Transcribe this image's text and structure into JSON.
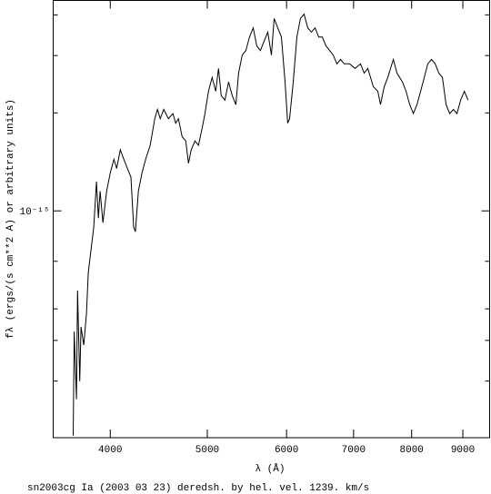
{
  "chart_data": {
    "type": "line",
    "xlabel": "λ (Å)",
    "ylabel": "fλ (ergs/(s cm**2 A) or arbitrary units)",
    "caption": "sn2003cg Ia (2003 03 23) deredsh. by hel. vel.  1239. km/s",
    "xscale": "log",
    "yscale": "log",
    "xlim": [
      3508,
      9572
    ],
    "ylim": [
      2.01e-16,
      4.43e-15
    ],
    "xticks": [
      4000,
      5000,
      6000,
      7000,
      8000,
      9000
    ],
    "yticks": [
      {
        "value": 1e-15,
        "label": "10⁻¹⁵"
      }
    ],
    "yminor": [
      3e-16,
      4e-16,
      5e-16,
      7e-16,
      2e-15,
      3e-15,
      4e-15
    ],
    "series": [
      {
        "color": "#000000",
        "x": [
          3673,
          3682,
          3701,
          3710,
          3729,
          3740,
          3763,
          3787,
          3803,
          3827,
          3851,
          3875,
          3892,
          3908,
          3933,
          3967,
          4000,
          4034,
          4059,
          4093,
          4127,
          4161,
          4195,
          4221,
          4238,
          4267,
          4303,
          4339,
          4385,
          4431,
          4459,
          4487,
          4524,
          4572,
          4620,
          4649,
          4679,
          4719,
          4759,
          4789,
          4819,
          4860,
          4900,
          4942,
          4973,
          5014,
          5056,
          5099,
          5131,
          5163,
          5207,
          5251,
          5295,
          5340,
          5373,
          5419,
          5464,
          5510,
          5557,
          5603,
          5650,
          5697,
          5746,
          5795,
          5831,
          5880,
          5929,
          5979,
          6016,
          6042,
          6093,
          6144,
          6195,
          6247,
          6300,
          6353,
          6406,
          6460,
          6514,
          6569,
          6624,
          6680,
          6736,
          6793,
          6850,
          6937,
          7024,
          7113,
          7172,
          7233,
          7324,
          7401,
          7448,
          7511,
          7574,
          7670,
          7735,
          7833,
          7899,
          7964,
          8032,
          8099,
          8167,
          8235,
          8304,
          8374,
          8445,
          8516,
          8588,
          8660,
          8733,
          8806,
          8880,
          8955,
          9031,
          9107
        ],
        "values": [
          2.04e-16,
          4.26e-16,
          2.64e-16,
          5.69e-16,
          3e-16,
          4.4e-16,
          3.87e-16,
          4.84e-16,
          6.46e-16,
          7.59e-16,
          8.91e-16,
          1.23e-15,
          9.5e-16,
          1.15e-15,
          9.2e-16,
          1.15e-15,
          1.31e-15,
          1.44e-15,
          1.35e-15,
          1.54e-15,
          1.44e-15,
          1.35e-15,
          1.27e-15,
          8.91e-16,
          8.63e-16,
          1.15e-15,
          1.31e-15,
          1.44e-15,
          1.59e-15,
          1.92e-15,
          2.05e-15,
          1.92e-15,
          2.05e-15,
          1.92e-15,
          1.99e-15,
          1.86e-15,
          1.92e-15,
          1.69e-15,
          1.64e-15,
          1.4e-15,
          1.54e-15,
          1.64e-15,
          1.59e-15,
          1.8e-15,
          1.99e-15,
          2.33e-15,
          2.57e-15,
          2.33e-15,
          2.74e-15,
          2.26e-15,
          2.19e-15,
          2.49e-15,
          2.26e-15,
          2.12e-15,
          2.65e-15,
          3.01e-15,
          3.11e-15,
          3.42e-15,
          3.65e-15,
          3.21e-15,
          3.11e-15,
          3.32e-15,
          3.54e-15,
          3.01e-15,
          3.9e-15,
          3.65e-15,
          3.42e-15,
          2.49e-15,
          1.86e-15,
          1.92e-15,
          2.49e-15,
          3.42e-15,
          3.9e-15,
          4.02e-15,
          3.65e-15,
          3.54e-15,
          3.65e-15,
          3.42e-15,
          3.42e-15,
          3.21e-15,
          3.11e-15,
          3.01e-15,
          2.83e-15,
          2.92e-15,
          2.83e-15,
          2.83e-15,
          2.74e-15,
          2.83e-15,
          2.65e-15,
          2.74e-15,
          2.41e-15,
          2.33e-15,
          2.12e-15,
          2.41e-15,
          2.57e-15,
          2.92e-15,
          2.65e-15,
          2.49e-15,
          2.33e-15,
          2.12e-15,
          1.99e-15,
          2.12e-15,
          2.33e-15,
          2.57e-15,
          2.83e-15,
          2.92e-15,
          2.83e-15,
          2.65e-15,
          2.57e-15,
          2.12e-15,
          1.99e-15,
          2.05e-15,
          1.99e-15,
          2.19e-15,
          2.33e-15,
          2.19e-15
        ]
      }
    ]
  }
}
